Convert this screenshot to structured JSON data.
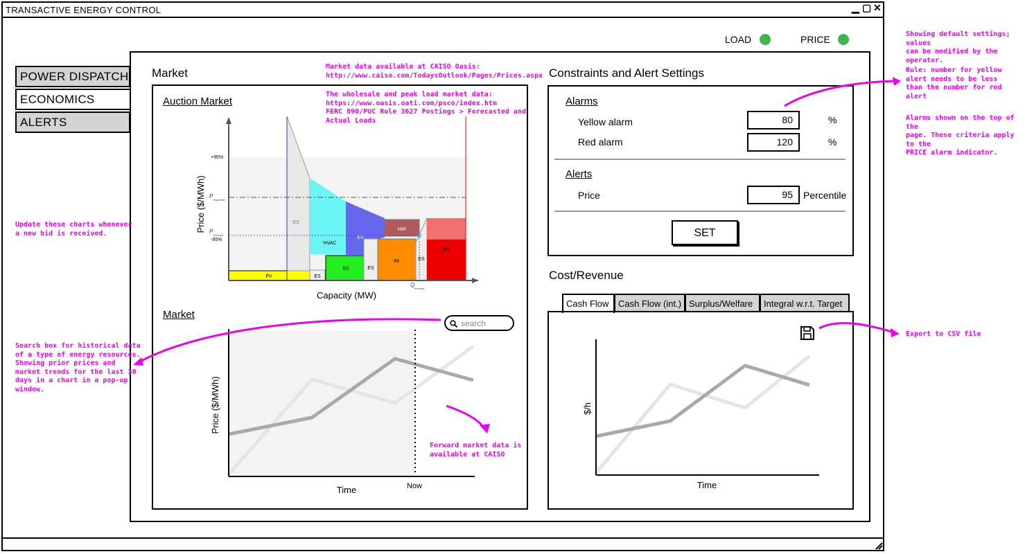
{
  "window": {
    "title": "TRANSACTIVE ENERGY CONTROL",
    "controls": [
      "▁",
      "▢",
      "✕"
    ]
  },
  "indicators": [
    {
      "label": "LOAD",
      "color": "#3cb54a"
    },
    {
      "label": "PRICE",
      "color": "#3cb54a"
    }
  ],
  "nav": [
    {
      "label": "POWER DISPATCH",
      "active": false
    },
    {
      "label": "ECONOMICS",
      "active": true
    },
    {
      "label": "ALERTS",
      "active": false
    }
  ],
  "market": {
    "title": "Market",
    "auction_title": "Auction Market",
    "auction_ylabel": "Price ($/MWh)",
    "auction_xlabel": "Capacity (MW)",
    "ticks": {
      "p95": "+95%",
      "m95": "-95%",
      "p_expected": "P",
      "p_expected_sub": "expected",
      "p_forecast": "P",
      "p_forecast_sub": "forecast",
      "q_forecast": "Q",
      "q_forecast_sub": "forecast"
    },
    "blocks": [
      "PV",
      "ES",
      "ES",
      "HVAC",
      "BS",
      "EV",
      "ES",
      "IM",
      "HW",
      "ES",
      "PS"
    ],
    "market_title": "Market",
    "search_placeholder": "search",
    "market_ylabel": "Price ($/MWh)",
    "market_xlabel": "Time",
    "now_label": "Now"
  },
  "constraints": {
    "title": "Constraints and Alert Settings",
    "alarms_title": "Alarms",
    "yellow_label": "Yellow alarm",
    "yellow_value": "80",
    "yellow_unit": "%",
    "red_label": "Red alarm",
    "red_value": "120",
    "red_unit": "%",
    "alerts_title": "Alerts",
    "price_label": "Price",
    "price_value": "95",
    "price_unit": "Percentile",
    "set_label": "SET"
  },
  "cost": {
    "title": "Cost/Revenue",
    "tabs": [
      "Cash Flow",
      "Cash Flow (int.)",
      "Surplus/Welfare",
      "Integral w.r.t. Target"
    ],
    "ylabel": "$/h",
    "xlabel": "Time",
    "save_icon": "floppy-disk-icon"
  },
  "notes": {
    "caiso1": "Market data available at CAISO Oasis:",
    "caiso2": "http://www.caiso.com/TodaysOutlook/Pages/Prices.aspx",
    "oasis1": "The wholesale and peak load market data:",
    "oasis2": "https://www.oasis.oati.com/psco/index.htm",
    "oasis3": "FERC 890/PUC Rule 3627 Postings > Forecasted and",
    "oasis4": "Actual Loads",
    "update1": "Update these charts whenever",
    "update2": "a new bid is received.",
    "search1": "Search box for historical data",
    "search2": "of a type of energy resources.",
    "search3": "Showing prior prices and",
    "search4": "market trends for the last 30",
    "search5": "days in a chart in a pop-up",
    "search6": "window.",
    "forward1": "Forward market data is",
    "forward2": "available at CAISO",
    "default1": "Showing default settings; values",
    "default2": "can be modified by the operator.",
    "rule1": "Rule: number for yellow",
    "rule2": "alert needs to be less",
    "rule3": "than the number for red",
    "rule4": "alert",
    "alarms1": "Alarms shown on the top of the",
    "alarms2": "page. These criteria apply to the",
    "alarms3": "PRICE alarm indicator.",
    "export": "Export to CSV file"
  }
}
